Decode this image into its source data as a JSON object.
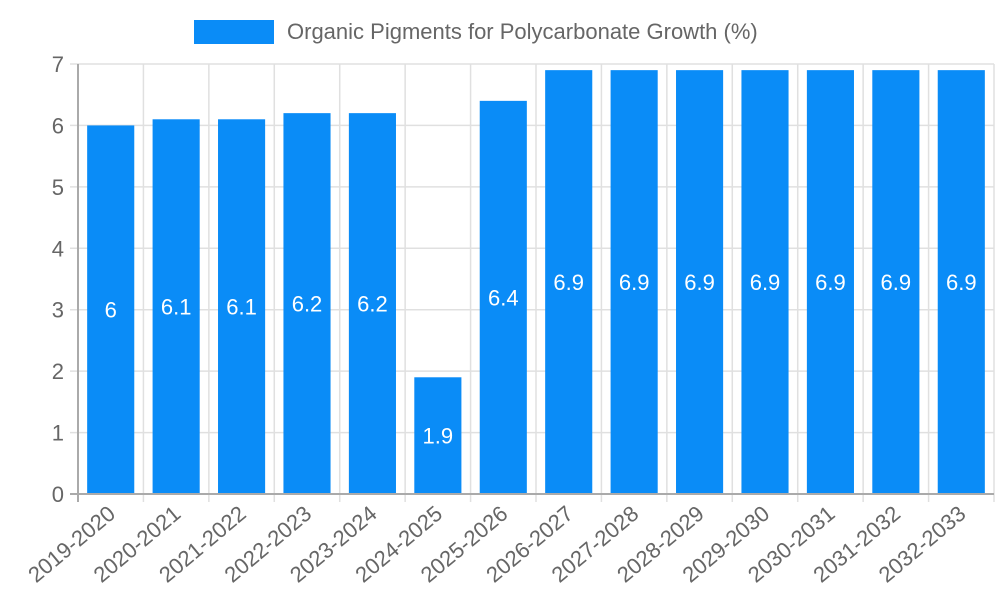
{
  "chart_data": {
    "type": "bar",
    "title": "",
    "legend": [
      {
        "label": "Organic Pigments for Polycarbonate Growth (%)",
        "color": "#0a8cf7"
      }
    ],
    "categories": [
      "2019-2020",
      "2020-2021",
      "2021-2022",
      "2022-2023",
      "2023-2024",
      "2024-2025",
      "2025-2026",
      "2026-2027",
      "2027-2028",
      "2028-2029",
      "2029-2030",
      "2030-2031",
      "2031-2032",
      "2032-2033"
    ],
    "series": [
      {
        "name": "Organic Pigments for Polycarbonate Growth (%)",
        "values": [
          6,
          6.1,
          6.1,
          6.2,
          6.2,
          1.9,
          6.4,
          6.9,
          6.9,
          6.9,
          6.9,
          6.9,
          6.9,
          6.9
        ]
      }
    ],
    "xlabel": "",
    "ylabel": "",
    "ylim": [
      0,
      7
    ],
    "yticks": [
      0,
      1,
      2,
      3,
      4,
      5,
      6,
      7
    ],
    "grid": true,
    "legend_position": "top",
    "data_labels": true
  },
  "legend": {
    "label": "Organic Pigments for Polycarbonate Growth (%)"
  }
}
